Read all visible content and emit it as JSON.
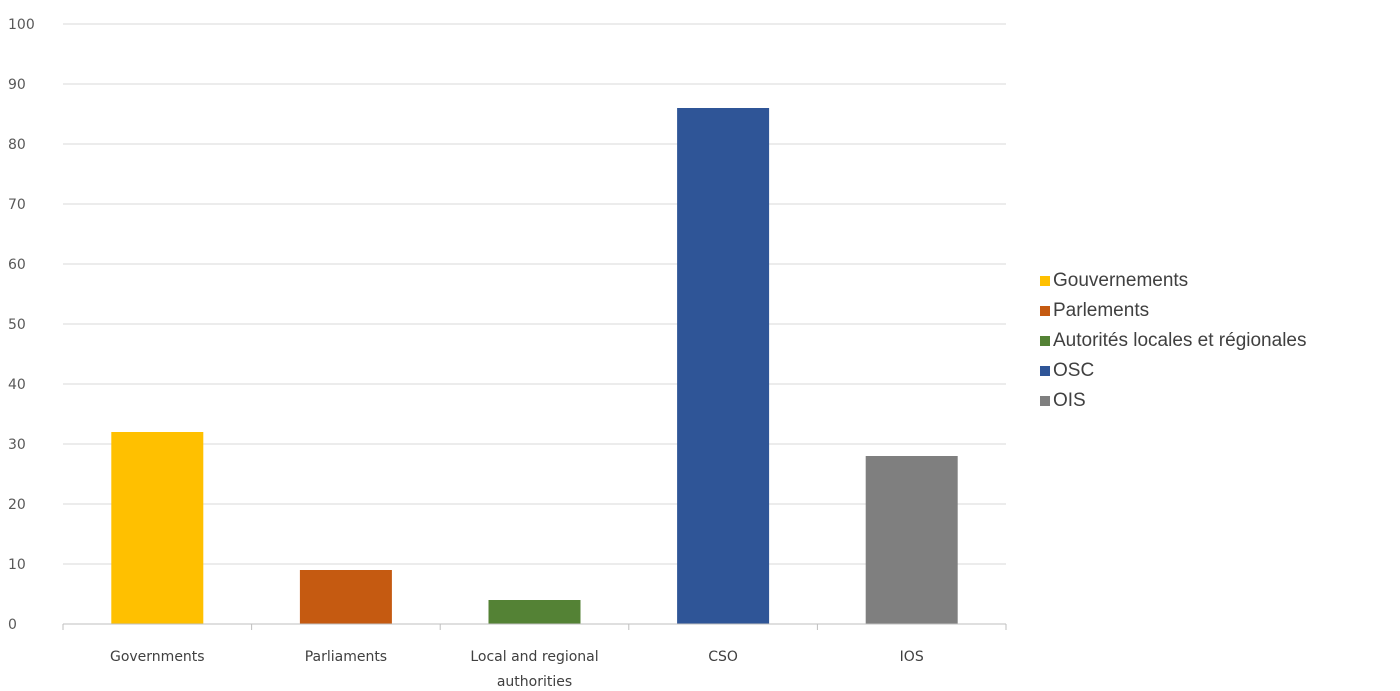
{
  "chart_data": {
    "type": "bar",
    "categories": [
      "Governments",
      "Parliaments",
      "Local and regional authorities",
      "CSO",
      "IOS"
    ],
    "category_lines": [
      [
        "Governments"
      ],
      [
        "Parliaments"
      ],
      [
        "Local and regional",
        "authorities"
      ],
      [
        "CSO"
      ],
      [
        "IOS"
      ]
    ],
    "values": [
      32,
      9,
      4,
      86,
      28
    ],
    "colors": [
      "#FFC000",
      "#C55A11",
      "#548235",
      "#2F5597",
      "#7F7F7F"
    ],
    "ylim": [
      0,
      100
    ],
    "yticks": [
      0,
      10,
      20,
      30,
      40,
      50,
      60,
      70,
      80,
      90,
      100
    ],
    "grid": true,
    "legend_position": "right",
    "legend": [
      "Gouvernements",
      "Parlements",
      "Autorités locales et régionales",
      "OSC",
      "OIS"
    ],
    "title": "",
    "xlabel": "",
    "ylabel": ""
  }
}
